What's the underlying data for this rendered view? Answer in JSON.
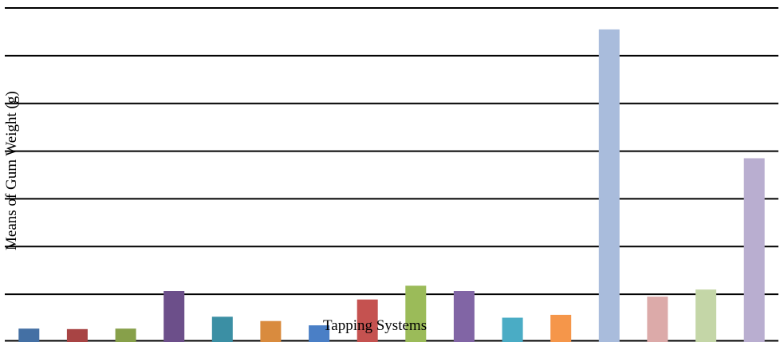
{
  "chart_data": {
    "type": "bar",
    "title": "",
    "xlabel": "Tapping Systems",
    "ylabel": "Means of Gum  Weight (g)",
    "ylim": [
      0,
      7
    ],
    "grid": true,
    "gridlines": [
      0,
      1,
      2,
      3,
      4,
      5,
      6,
      7
    ],
    "series": [
      {
        "values": [
          0.28,
          0.27,
          0.28,
          1.07,
          0.53,
          0.44,
          0.35,
          0.89,
          1.18,
          1.07,
          0.51,
          0.57,
          6.55,
          0.95,
          1.1,
          3.85
        ],
        "colors": [
          "#4470a4",
          "#a84444",
          "#87a04a",
          "#6c4f8a",
          "#3b8fa4",
          "#d98b3e",
          "#4a7fc6",
          "#c55250",
          "#9bbb59",
          "#8165a5",
          "#4aacc5",
          "#f5964a",
          "#a9bcdc",
          "#dcaaa9",
          "#c4d6a7",
          "#b9aed0"
        ]
      }
    ]
  }
}
